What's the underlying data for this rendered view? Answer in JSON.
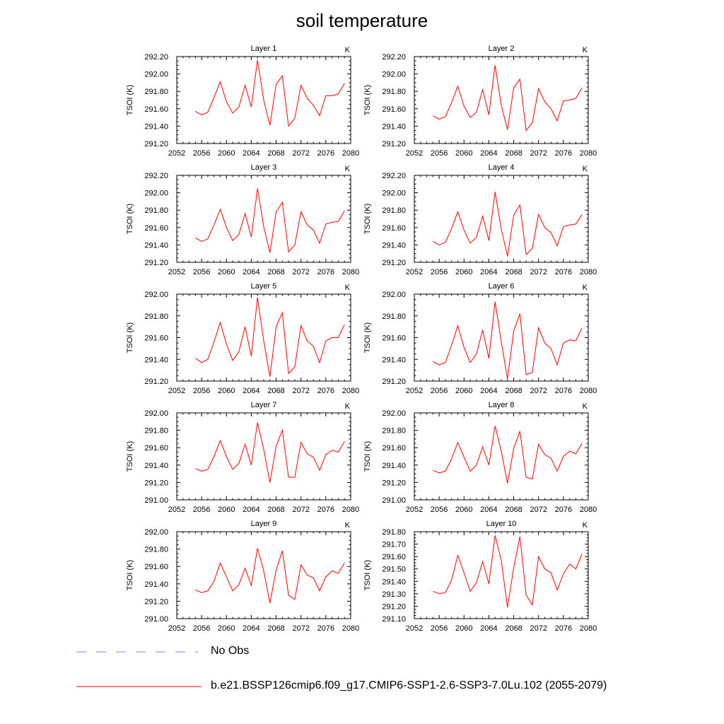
{
  "title": "soil temperature",
  "legend": [
    {
      "label": "No Obs",
      "color": "#8080ff",
      "dash": "dashed"
    },
    {
      "label": "b.e21.BSSP126cmip6.f09_g17.CMIP6-SSP1-2.6-SSP3-7.0Lu.102 (2055-2079)",
      "color": "#ff0000",
      "dash": "solid"
    }
  ],
  "chart_data": [
    {
      "type": "line",
      "title": "Layer 1",
      "unit": "K",
      "ylabel": "TSOI  (K)",
      "xlim": [
        2052,
        2080
      ],
      "ylim": [
        291.2,
        292.2
      ],
      "xticks": [
        2052,
        2056,
        2060,
        2064,
        2068,
        2072,
        2076,
        2080
      ],
      "yticks": [
        "291.20",
        "291.40",
        "291.60",
        "291.80",
        "292.00",
        "292.20"
      ],
      "x": [
        2055,
        2056,
        2057,
        2058,
        2059,
        2060,
        2061,
        2062,
        2063,
        2064,
        2065,
        2066,
        2067,
        2068,
        2069,
        2070,
        2071,
        2072,
        2073,
        2074,
        2075,
        2076,
        2077,
        2078,
        2079
      ],
      "series": [
        {
          "values": [
            291.57,
            291.53,
            291.56,
            291.73,
            291.91,
            291.68,
            291.55,
            291.62,
            291.87,
            291.62,
            292.16,
            291.7,
            291.41,
            291.88,
            291.98,
            291.4,
            291.49,
            291.87,
            291.72,
            291.64,
            291.52,
            291.75,
            291.75,
            291.77,
            291.89
          ]
        }
      ]
    },
    {
      "type": "line",
      "title": "Layer 2",
      "unit": "K",
      "ylabel": "TSOI  (K)",
      "xlim": [
        2052,
        2080
      ],
      "ylim": [
        291.2,
        292.2
      ],
      "xticks": [
        2052,
        2056,
        2060,
        2064,
        2068,
        2072,
        2076,
        2080
      ],
      "yticks": [
        "291.20",
        "291.40",
        "291.60",
        "291.80",
        "292.00",
        "292.20"
      ],
      "x": [
        2055,
        2056,
        2057,
        2058,
        2059,
        2060,
        2061,
        2062,
        2063,
        2064,
        2065,
        2066,
        2067,
        2068,
        2069,
        2070,
        2071,
        2072,
        2073,
        2074,
        2075,
        2076,
        2077,
        2078,
        2079
      ],
      "series": [
        {
          "values": [
            291.52,
            291.48,
            291.51,
            291.67,
            291.86,
            291.63,
            291.5,
            291.56,
            291.82,
            291.53,
            292.1,
            291.64,
            291.36,
            291.84,
            291.94,
            291.35,
            291.44,
            291.83,
            291.68,
            291.6,
            291.46,
            291.69,
            291.7,
            291.72,
            291.84
          ]
        }
      ]
    },
    {
      "type": "line",
      "title": "Layer 3",
      "unit": "K",
      "ylabel": "TSOI  (K)",
      "xlim": [
        2052,
        2080
      ],
      "ylim": [
        291.2,
        292.2
      ],
      "xticks": [
        2052,
        2056,
        2060,
        2064,
        2068,
        2072,
        2076,
        2080
      ],
      "yticks": [
        "291.20",
        "291.40",
        "291.60",
        "291.80",
        "292.00",
        "292.20"
      ],
      "x": [
        2055,
        2056,
        2057,
        2058,
        2059,
        2060,
        2061,
        2062,
        2063,
        2064,
        2065,
        2066,
        2067,
        2068,
        2069,
        2070,
        2071,
        2072,
        2073,
        2074,
        2075,
        2076,
        2077,
        2078,
        2079
      ],
      "series": [
        {
          "values": [
            291.48,
            291.44,
            291.47,
            291.63,
            291.81,
            291.6,
            291.45,
            291.52,
            291.76,
            291.49,
            292.05,
            291.61,
            291.31,
            291.78,
            291.89,
            291.32,
            291.4,
            291.78,
            291.63,
            291.57,
            291.42,
            291.64,
            291.66,
            291.67,
            291.79
          ]
        }
      ]
    },
    {
      "type": "line",
      "title": "Layer 4",
      "unit": "K",
      "ylabel": "TSOI  (K)",
      "xlim": [
        2052,
        2080
      ],
      "ylim": [
        291.2,
        292.2
      ],
      "xticks": [
        2052,
        2056,
        2060,
        2064,
        2068,
        2072,
        2076,
        2080
      ],
      "yticks": [
        "291.20",
        "291.40",
        "291.60",
        "291.80",
        "292.00",
        "292.20"
      ],
      "x": [
        2055,
        2056,
        2057,
        2058,
        2059,
        2060,
        2061,
        2062,
        2063,
        2064,
        2065,
        2066,
        2067,
        2068,
        2069,
        2070,
        2071,
        2072,
        2073,
        2074,
        2075,
        2076,
        2077,
        2078,
        2079
      ],
      "series": [
        {
          "values": [
            291.44,
            291.4,
            291.43,
            291.59,
            291.78,
            291.57,
            291.42,
            291.49,
            291.73,
            291.45,
            292.01,
            291.58,
            291.27,
            291.74,
            291.86,
            291.29,
            291.36,
            291.75,
            291.6,
            291.54,
            291.39,
            291.61,
            291.63,
            291.64,
            291.75
          ]
        }
      ]
    },
    {
      "type": "line",
      "title": "Layer 5",
      "unit": "K",
      "ylabel": "TSOI  (K)",
      "xlim": [
        2052,
        2080
      ],
      "ylim": [
        291.2,
        292.0
      ],
      "xticks": [
        2052,
        2056,
        2060,
        2064,
        2068,
        2072,
        2076,
        2080
      ],
      "yticks": [
        "291.20",
        "291.40",
        "291.60",
        "291.80",
        "292.00"
      ],
      "x": [
        2055,
        2056,
        2057,
        2058,
        2059,
        2060,
        2061,
        2062,
        2063,
        2064,
        2065,
        2066,
        2067,
        2068,
        2069,
        2070,
        2071,
        2072,
        2073,
        2074,
        2075,
        2076,
        2077,
        2078,
        2079
      ],
      "series": [
        {
          "values": [
            291.41,
            291.37,
            291.4,
            291.56,
            291.74,
            291.54,
            291.39,
            291.47,
            291.7,
            291.43,
            291.97,
            291.57,
            291.24,
            291.7,
            291.83,
            291.27,
            291.33,
            291.71,
            291.57,
            291.52,
            291.37,
            291.57,
            291.6,
            291.6,
            291.72
          ]
        }
      ]
    },
    {
      "type": "line",
      "title": "Layer 6",
      "unit": "K",
      "ylabel": "TSOI  (K)",
      "xlim": [
        2052,
        2080
      ],
      "ylim": [
        291.2,
        292.0
      ],
      "xticks": [
        2052,
        2056,
        2060,
        2064,
        2068,
        2072,
        2076,
        2080
      ],
      "yticks": [
        "291.20",
        "291.40",
        "291.60",
        "291.80",
        "292.00"
      ],
      "x": [
        2055,
        2056,
        2057,
        2058,
        2059,
        2060,
        2061,
        2062,
        2063,
        2064,
        2065,
        2066,
        2067,
        2068,
        2069,
        2070,
        2071,
        2072,
        2073,
        2074,
        2075,
        2076,
        2077,
        2078,
        2079
      ],
      "series": [
        {
          "values": [
            291.38,
            291.35,
            291.37,
            291.53,
            291.71,
            291.51,
            291.37,
            291.45,
            291.67,
            291.41,
            291.93,
            291.56,
            291.22,
            291.66,
            291.82,
            291.26,
            291.28,
            291.69,
            291.55,
            291.5,
            291.35,
            291.55,
            291.58,
            291.57,
            291.69
          ]
        }
      ]
    },
    {
      "type": "line",
      "title": "Layer 7",
      "unit": "K",
      "ylabel": "TSOI  (K)",
      "xlim": [
        2052,
        2080
      ],
      "ylim": [
        291.0,
        292.0
      ],
      "xticks": [
        2052,
        2056,
        2060,
        2064,
        2068,
        2072,
        2076,
        2080
      ],
      "yticks": [
        "291.00",
        "291.20",
        "291.40",
        "291.60",
        "291.80",
        "292.00"
      ],
      "x": [
        2055,
        2056,
        2057,
        2058,
        2059,
        2060,
        2061,
        2062,
        2063,
        2064,
        2065,
        2066,
        2067,
        2068,
        2069,
        2070,
        2071,
        2072,
        2073,
        2074,
        2075,
        2076,
        2077,
        2078,
        2079
      ],
      "series": [
        {
          "values": [
            291.36,
            291.33,
            291.35,
            291.5,
            291.68,
            291.5,
            291.35,
            291.42,
            291.64,
            291.4,
            291.89,
            291.58,
            291.2,
            291.62,
            291.8,
            291.26,
            291.26,
            291.66,
            291.53,
            291.49,
            291.34,
            291.52,
            291.57,
            291.55,
            291.67
          ]
        }
      ]
    },
    {
      "type": "line",
      "title": "Layer 8",
      "unit": "K",
      "ylabel": "TSOI  (K)",
      "xlim": [
        2052,
        2080
      ],
      "ylim": [
        291.0,
        292.0
      ],
      "xticks": [
        2052,
        2056,
        2060,
        2064,
        2068,
        2072,
        2076,
        2080
      ],
      "yticks": [
        "291.00",
        "291.20",
        "291.40",
        "291.60",
        "291.80",
        "292.00"
      ],
      "x": [
        2055,
        2056,
        2057,
        2058,
        2059,
        2060,
        2061,
        2062,
        2063,
        2064,
        2065,
        2066,
        2067,
        2068,
        2069,
        2070,
        2071,
        2072,
        2073,
        2074,
        2075,
        2076,
        2077,
        2078,
        2079
      ],
      "series": [
        {
          "values": [
            291.34,
            291.31,
            291.33,
            291.47,
            291.66,
            291.49,
            291.33,
            291.4,
            291.61,
            291.4,
            291.85,
            291.56,
            291.19,
            291.59,
            291.79,
            291.26,
            291.24,
            291.64,
            291.52,
            291.48,
            291.33,
            291.5,
            291.56,
            291.53,
            291.65
          ]
        }
      ]
    },
    {
      "type": "line",
      "title": "Layer 9",
      "unit": "K",
      "ylabel": "TSOI  (K)",
      "xlim": [
        2052,
        2080
      ],
      "ylim": [
        291.0,
        292.0
      ],
      "xticks": [
        2052,
        2056,
        2060,
        2064,
        2068,
        2072,
        2076,
        2080
      ],
      "yticks": [
        "291.00",
        "291.20",
        "291.40",
        "291.60",
        "291.80",
        "292.00"
      ],
      "x": [
        2055,
        2056,
        2057,
        2058,
        2059,
        2060,
        2061,
        2062,
        2063,
        2064,
        2065,
        2066,
        2067,
        2068,
        2069,
        2070,
        2071,
        2072,
        2073,
        2074,
        2075,
        2076,
        2077,
        2078,
        2079
      ],
      "series": [
        {
          "values": [
            291.33,
            291.3,
            291.32,
            291.43,
            291.64,
            291.48,
            291.32,
            291.39,
            291.58,
            291.38,
            291.81,
            291.55,
            291.18,
            291.56,
            291.78,
            291.27,
            291.22,
            291.62,
            291.5,
            291.47,
            291.32,
            291.48,
            291.55,
            291.52,
            291.64
          ]
        }
      ]
    },
    {
      "type": "line",
      "title": "Layer 10",
      "unit": "K",
      "ylabel": "TSOI  (K)",
      "xlim": [
        2052,
        2080
      ],
      "ylim": [
        291.1,
        291.8
      ],
      "xticks": [
        2052,
        2056,
        2060,
        2064,
        2068,
        2072,
        2076,
        2080
      ],
      "yticks": [
        "291.10",
        "291.20",
        "291.30",
        "291.40",
        "291.50",
        "291.60",
        "291.70",
        "291.80"
      ],
      "x": [
        2055,
        2056,
        2057,
        2058,
        2059,
        2060,
        2061,
        2062,
        2063,
        2064,
        2065,
        2066,
        2067,
        2068,
        2069,
        2070,
        2071,
        2072,
        2073,
        2074,
        2075,
        2076,
        2077,
        2078,
        2079
      ],
      "series": [
        {
          "values": [
            291.32,
            291.3,
            291.31,
            291.41,
            291.61,
            291.47,
            291.32,
            291.39,
            291.56,
            291.38,
            291.77,
            291.57,
            291.19,
            291.51,
            291.76,
            291.29,
            291.21,
            291.6,
            291.5,
            291.47,
            291.33,
            291.46,
            291.54,
            291.5,
            291.62
          ]
        }
      ]
    }
  ]
}
